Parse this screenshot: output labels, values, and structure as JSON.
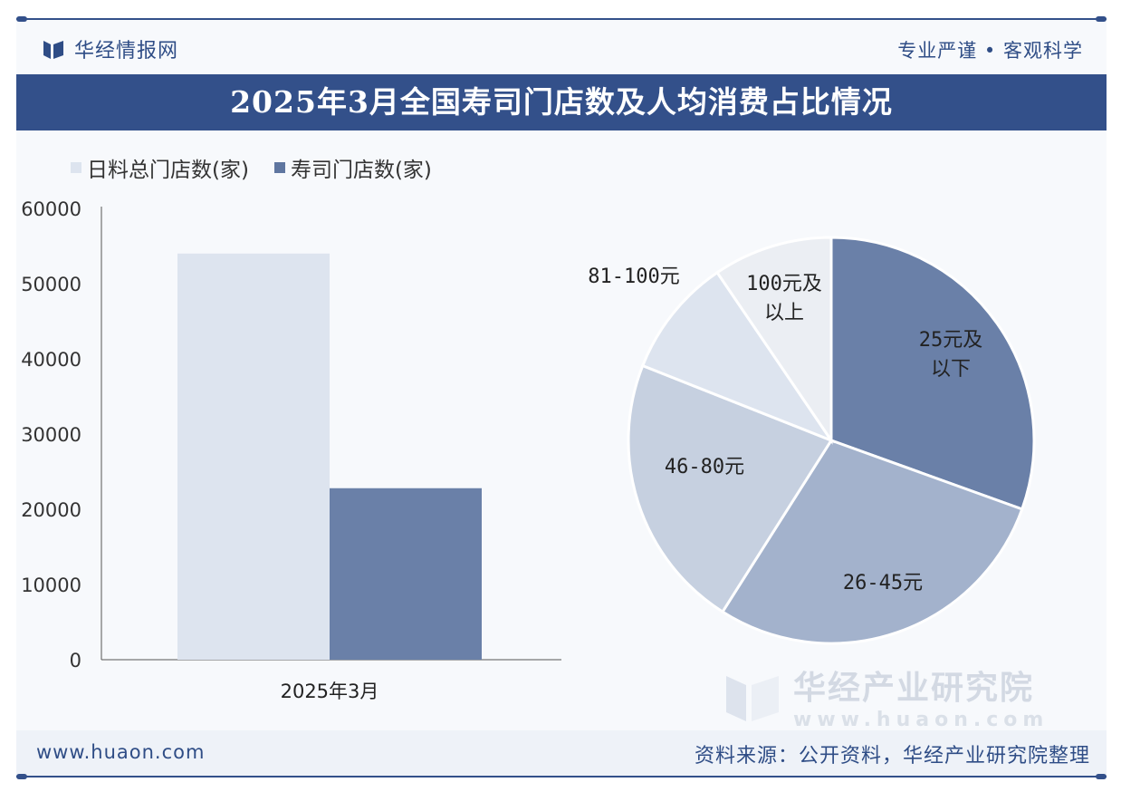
{
  "header": {
    "brand": "华经情报网",
    "tagline": "专业严谨 • 客观科学"
  },
  "title": "2025年3月全国寿司门店数及人均消费占比情况",
  "watermark": {
    "name": "华经产业研究院",
    "url": "www.huaon.com"
  },
  "footer": {
    "url": "www.huaon.com",
    "source": "资料来源：公开资料，华经产业研究院整理"
  },
  "colors": {
    "brand": "#33508a",
    "bar_total": "#dde4ef",
    "bar_sushi": "#6a80a8"
  },
  "chart_data": [
    {
      "type": "bar",
      "categories": [
        "2025年3月"
      ],
      "series": [
        {
          "name": "日料总门店数(家)",
          "values": [
            54000
          ],
          "color": "#dde4ef"
        },
        {
          "name": "寿司门店数(家)",
          "values": [
            22800
          ],
          "color": "#6a80a8"
        }
      ],
      "ylim": [
        0,
        60000
      ],
      "yticks": [
        "0",
        "10000",
        "20000",
        "30000",
        "40000",
        "50000",
        "60000"
      ],
      "legend": "top-left",
      "grid": false
    },
    {
      "type": "pie",
      "slices": [
        {
          "label": "25元及以下",
          "value": 30.5,
          "color": "#6a80a8"
        },
        {
          "label": "26-45元",
          "value": 28.5,
          "color": "#a3b2cc"
        },
        {
          "label": "46-80元",
          "value": 22.0,
          "color": "#c6d0e0"
        },
        {
          "label": "81-100元",
          "value": 9.5,
          "color": "#dde4ef"
        },
        {
          "label": "100元及以上",
          "value": 9.5,
          "color": "#ebeef3"
        }
      ]
    }
  ]
}
